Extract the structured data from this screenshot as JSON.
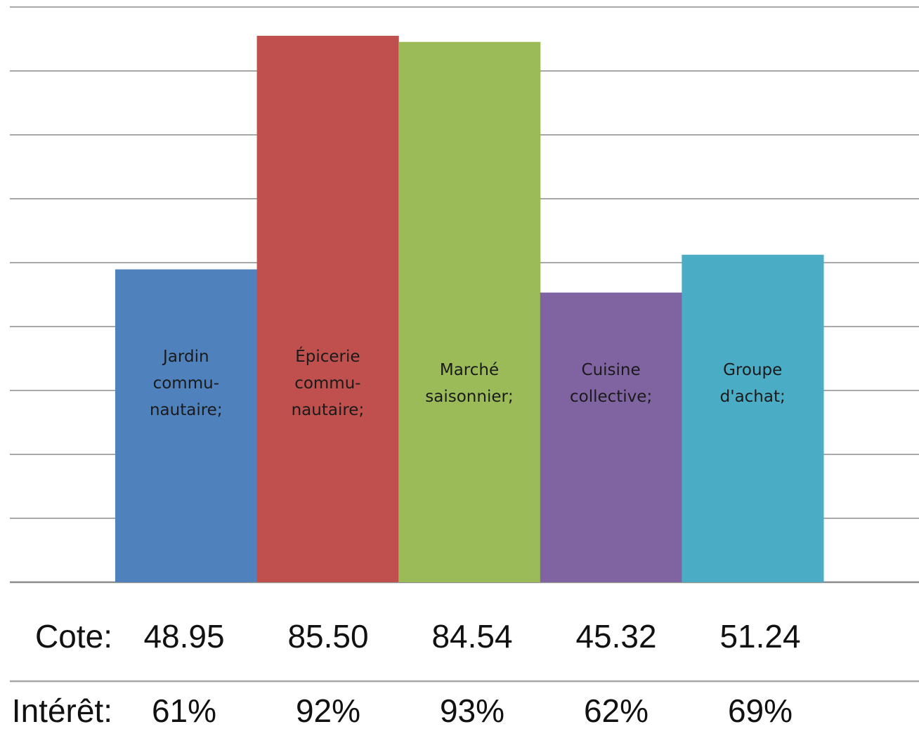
{
  "chart_data": {
    "type": "bar",
    "categories": [
      [
        "Jardin",
        "commu-",
        "nautaire;"
      ],
      [
        "Épicerie",
        "commu-",
        "nautaire;"
      ],
      [
        "Marché",
        "saisonnier;"
      ],
      [
        "Cuisine",
        "collective;"
      ],
      [
        "Groupe",
        "d'achat;"
      ]
    ],
    "values": [
      48.95,
      85.5,
      84.54,
      45.32,
      51.24
    ],
    "colors": [
      "#4f81bd",
      "#c0504d",
      "#9bbb59",
      "#8064a2",
      "#4bacc6"
    ],
    "ylim": [
      0,
      90
    ],
    "grid": true,
    "legend": "none",
    "table": {
      "rows": [
        {
          "label": "Cote:",
          "values": [
            "48.95",
            "85.50",
            "84.54",
            "45.32",
            "51.24"
          ]
        },
        {
          "label": "Intérêt:",
          "values": [
            "61%",
            "92%",
            "93%",
            "62%",
            "69%"
          ]
        }
      ]
    }
  }
}
